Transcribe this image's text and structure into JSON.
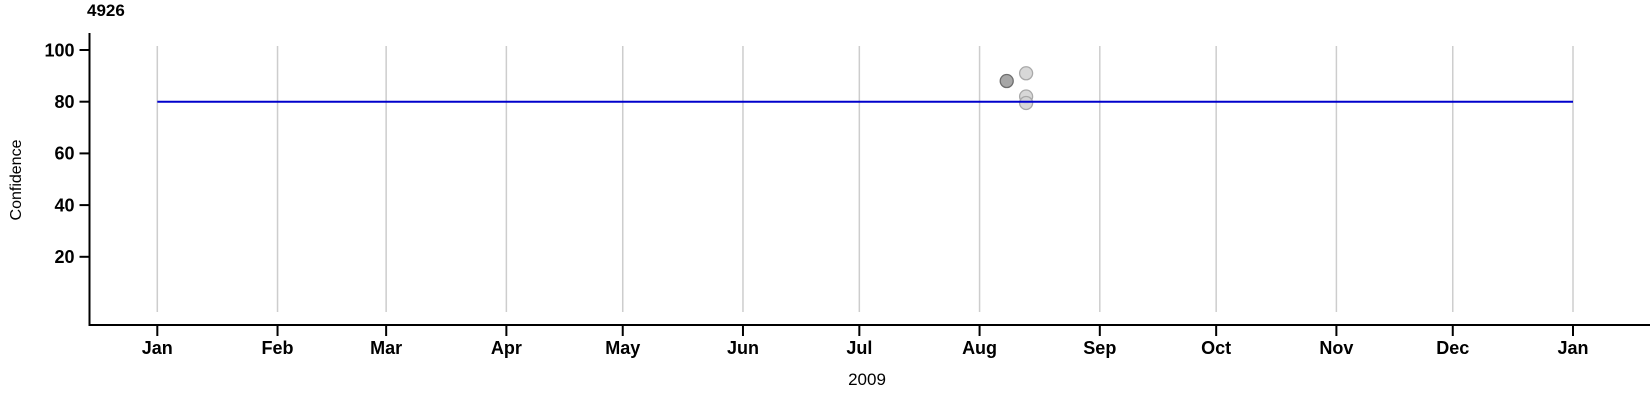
{
  "page": {
    "background": "#ffffff"
  },
  "chart_data": {
    "type": "scatter",
    "title": "4926",
    "xlabel": "2009",
    "ylabel": "Confidence",
    "ylim": [
      0,
      100
    ],
    "y_ticks": [
      20,
      40,
      60,
      80,
      100
    ],
    "x_domain_days": 365,
    "x_ticks": [
      {
        "label": "Jan",
        "day": 0
      },
      {
        "label": "Feb",
        "day": 31
      },
      {
        "label": "Mar",
        "day": 59
      },
      {
        "label": "Apr",
        "day": 90
      },
      {
        "label": "May",
        "day": 120
      },
      {
        "label": "Jun",
        "day": 151
      },
      {
        "label": "Jul",
        "day": 181
      },
      {
        "label": "Aug",
        "day": 212
      },
      {
        "label": "Sep",
        "day": 243
      },
      {
        "label": "Oct",
        "day": 273
      },
      {
        "label": "Nov",
        "day": 304
      },
      {
        "label": "Dec",
        "day": 334
      },
      {
        "label": "Jan",
        "day": 365
      }
    ],
    "reference_line": {
      "value": 80,
      "start_day": 0,
      "end_day": 365,
      "color": "#0000cc"
    },
    "points": [
      {
        "day": 219,
        "value": 88,
        "fill": "#9b9b9b",
        "stroke": "#6e6e6e"
      },
      {
        "day": 224,
        "value": 91,
        "fill": "#d3d3d3",
        "stroke": "#a9a9a9"
      },
      {
        "day": 224,
        "value": 82,
        "fill": "#d3d3d3",
        "stroke": "#a9a9a9"
      },
      {
        "day": 224,
        "value": 79.5,
        "fill": "#d3d3d3",
        "stroke": "#a9a9a9"
      }
    ],
    "grid": {
      "vertical_months": true,
      "color": "#cdcdcd"
    },
    "colors": {
      "axis": "#000000",
      "text": "#000000"
    },
    "legend": {
      "visible": false
    }
  }
}
